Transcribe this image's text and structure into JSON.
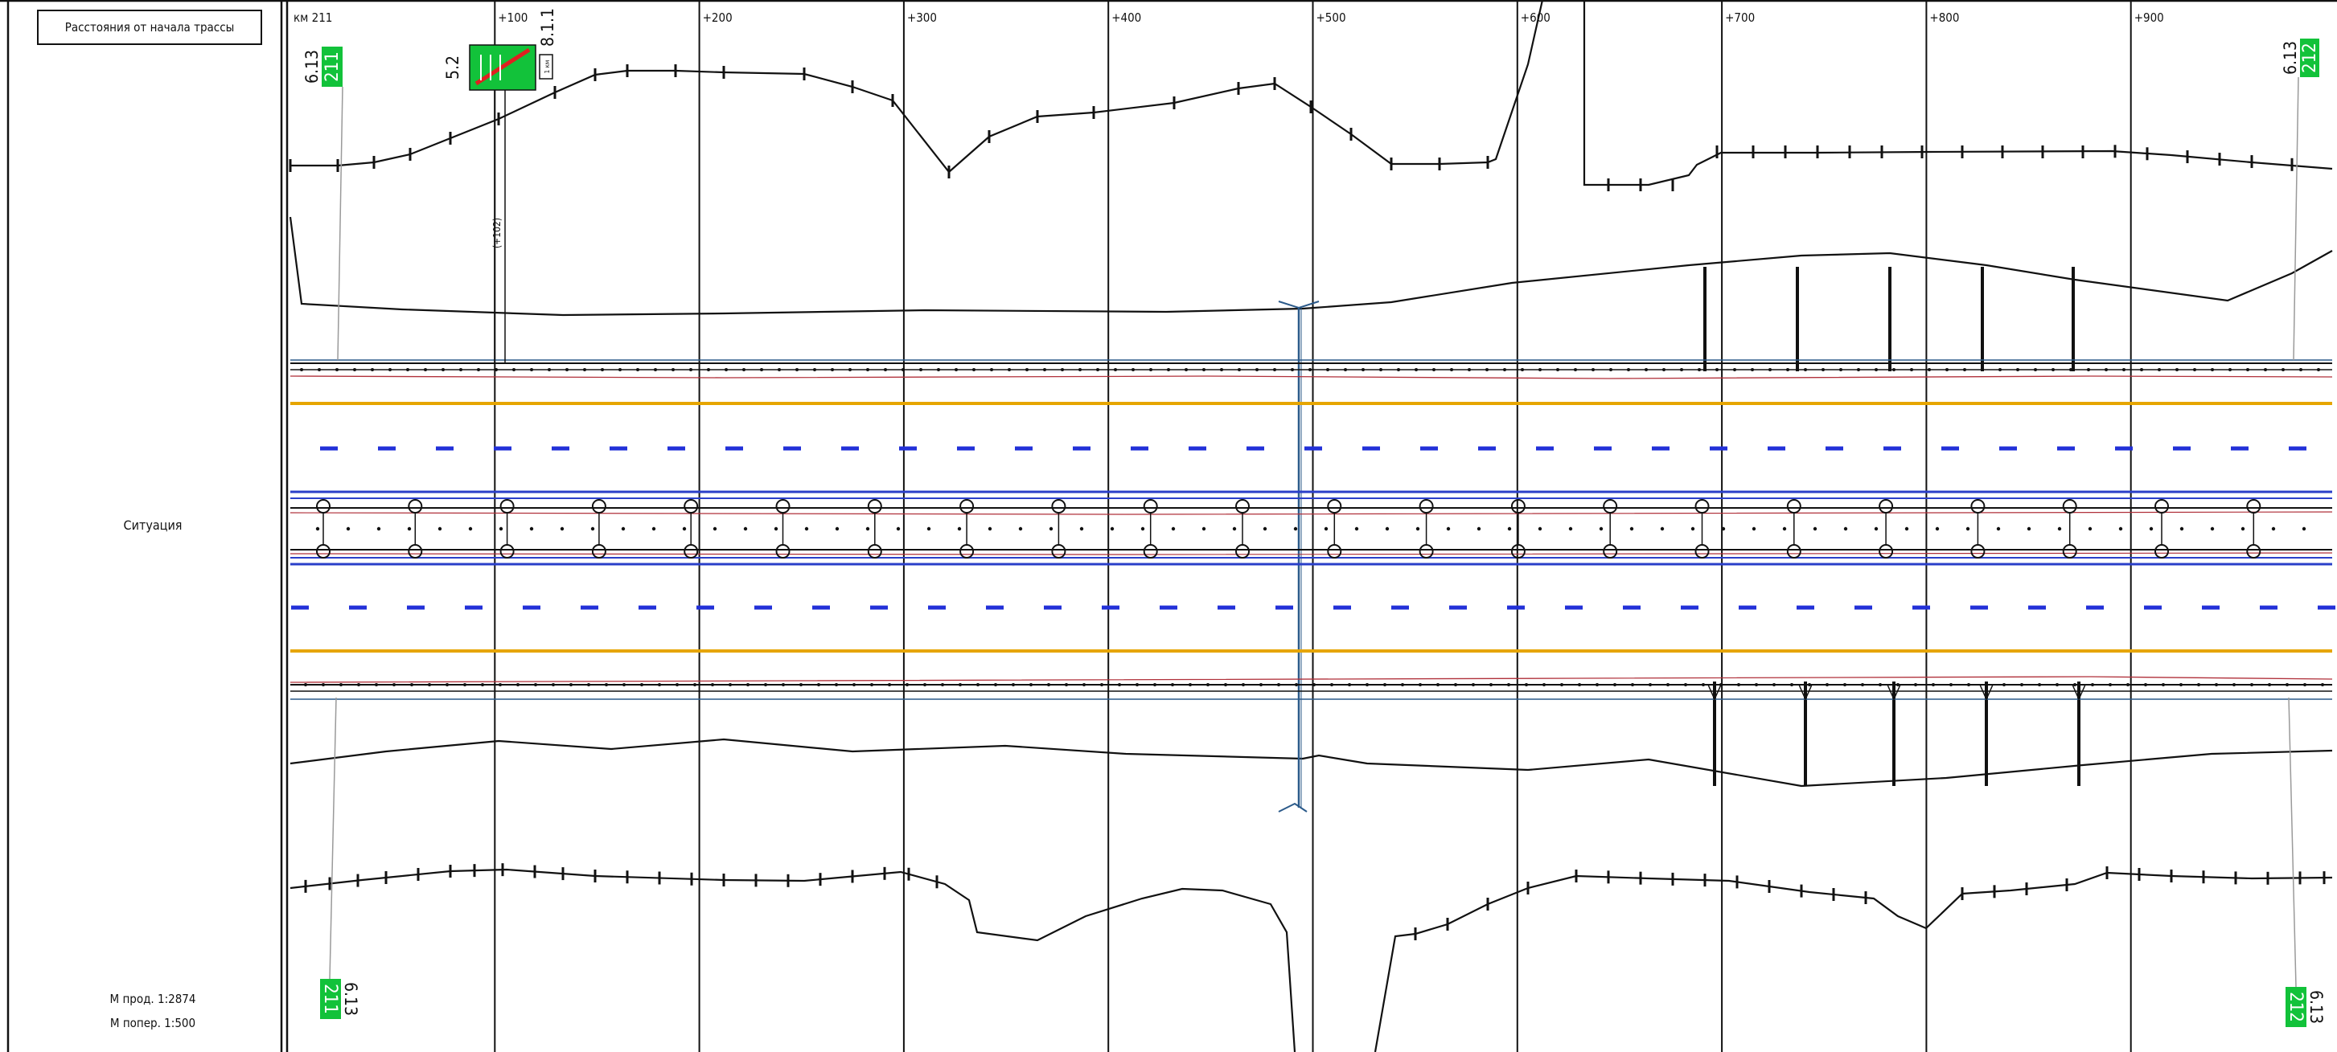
{
  "header": {
    "title": "Расстояния от начала трассы"
  },
  "situation_label": "Ситуация",
  "scale": {
    "longitudinal": "М прод. 1:2874",
    "transverse": "М попер. 1:500"
  },
  "stations": [
    "км 211",
    "+100",
    "+200",
    "+300",
    "+400",
    "+500",
    "+600",
    "+700",
    "+800",
    "+900"
  ],
  "signs": {
    "km_post_start": {
      "code": "6.13",
      "value": "211"
    },
    "km_post_end": {
      "code": "6.13",
      "value": "212"
    },
    "lane_sign": {
      "code_left": "5.2",
      "code_right": "8.1.1",
      "plate": "1 км"
    },
    "offset_note": "(+102)"
  },
  "colors": {
    "edge_line": "#e6a500",
    "lane_dash": "#2230d8",
    "barrier": "#2a3fc9",
    "curb_red": "#b0303a",
    "sign_green": "#12c23a",
    "water": "#2b5a8a",
    "ink": "#111111"
  }
}
